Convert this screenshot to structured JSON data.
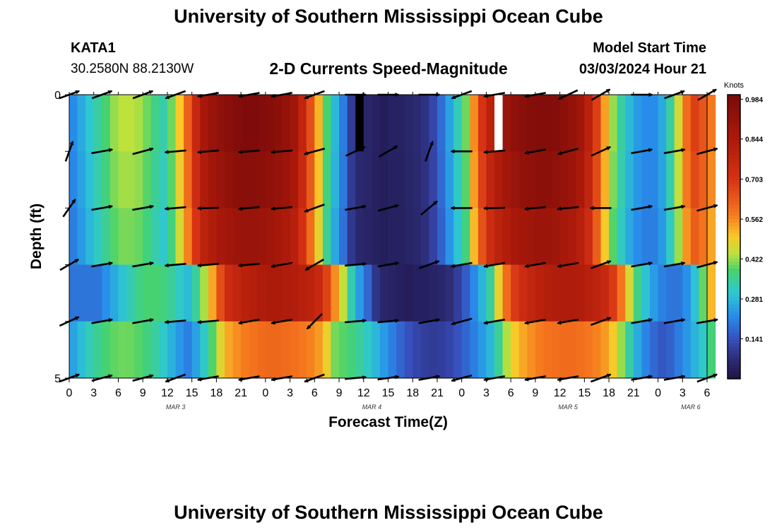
{
  "page": {
    "title": "University of Southern Mississippi Ocean Cube",
    "footer_title": "University of Southern Mississippi Ocean Cube",
    "station_id": "KATA1",
    "station_coords": "30.2580N  88.2130W",
    "chart_title": "2-D Currents Speed-Magnitude",
    "model_start_label": "Model Start Time",
    "model_start_value": "03/03/2024 Hour 21"
  },
  "chart_data": {
    "type": "heatmap",
    "title": "2-D Currents Speed-Magnitude",
    "xlabel": "Forecast Time(Z)",
    "ylabel": "Depth (ft)",
    "x_tick_labels": [
      "0",
      "3",
      "6",
      "9",
      "12",
      "15",
      "18",
      "21",
      "0",
      "3",
      "6",
      "9",
      "12",
      "15",
      "18",
      "21",
      "0",
      "3",
      "6",
      "9",
      "12",
      "15",
      "18",
      "21",
      "0",
      "3",
      "6"
    ],
    "y_tick_labels": [
      "0",
      "5"
    ],
    "ylim": [
      0,
      5
    ],
    "date_labels": [
      {
        "label": "MAR 3",
        "hour_index": 11
      },
      {
        "label": "MAR 4",
        "hour_index": 35
      },
      {
        "label": "MAR 5",
        "hour_index": 59
      },
      {
        "label": "MAR 6",
        "hour_index": 74
      }
    ],
    "colorbar": {
      "unit": "Knots",
      "ticks": [
        "0.984",
        "0.844",
        "0.703",
        "0.562",
        "0.422",
        "0.281",
        "0.141"
      ],
      "tick_values": [
        0.984,
        0.844,
        0.703,
        0.562,
        0.422,
        0.281,
        0.141
      ],
      "range": [
        0.0,
        1.0
      ]
    },
    "hours_per_column": 1,
    "layers": 5,
    "columns": 79,
    "surface_profile": [
      0.22,
      0.26,
      0.3,
      0.34,
      0.38,
      0.42,
      0.44,
      0.44,
      0.43,
      0.4,
      0.36,
      0.33,
      0.4,
      0.5,
      0.62,
      0.76,
      0.86,
      0.9,
      0.93,
      0.95,
      0.97,
      0.98,
      0.98,
      0.97,
      0.96,
      0.94,
      0.92,
      0.88,
      0.78,
      0.65,
      0.52,
      0.38,
      0.28,
      0.2,
      0.1,
      0.06,
      0.05,
      0.04,
      0.03,
      0.04,
      0.04,
      0.05,
      0.06,
      0.08,
      0.12,
      0.18,
      0.25,
      0.32,
      0.4,
      0.56,
      0.7,
      0.8,
      0.86,
      0.9,
      0.93,
      0.95,
      0.96,
      0.97,
      0.97,
      0.96,
      0.94,
      0.92,
      0.88,
      0.8,
      0.68,
      0.54,
      0.42,
      0.34,
      0.28,
      0.24,
      0.22,
      0.22,
      0.26,
      0.34,
      0.46,
      0.6,
      0.68,
      0.64,
      0.58
    ],
    "layer_factors": [
      1.0,
      0.97,
      0.92,
      0.86,
      0.62
    ],
    "deep_layer_shift_columns": 3,
    "missing_columns": [
      {
        "layer": 0,
        "hour_index": 35
      },
      {
        "layer": 0,
        "hour_index": 52
      }
    ],
    "vector_hours": [
      0,
      4,
      9,
      13,
      17,
      22,
      26,
      30,
      35,
      39,
      44,
      48,
      52,
      57,
      61,
      65,
      70,
      74,
      78
    ],
    "vector_layer_depths": [
      0,
      1,
      2,
      3,
      4,
      5
    ],
    "vector_angles_deg": [
      [
        20,
        20,
        20,
        -160,
        -170,
        -170,
        -170,
        -160,
        0,
        0,
        0,
        -160,
        -170,
        -170,
        -155,
        30,
        0,
        20,
        30
      ],
      [
        70,
        10,
        15,
        -175,
        -175,
        -175,
        -175,
        -165,
        25,
        30,
        70,
        180,
        -175,
        -170,
        -165,
        25,
        10,
        10,
        15
      ],
      [
        55,
        10,
        10,
        -175,
        -178,
        -175,
        -175,
        -160,
        10,
        15,
        40,
        180,
        -178,
        -175,
        -175,
        180,
        10,
        10,
        15
      ],
      [
        30,
        10,
        10,
        -175,
        -175,
        -175,
        -170,
        -150,
        5,
        10,
        20,
        -170,
        -170,
        -170,
        -170,
        20,
        10,
        10,
        15
      ],
      [
        25,
        10,
        10,
        -175,
        -175,
        -170,
        -170,
        -135,
        5,
        5,
        10,
        -165,
        -170,
        -170,
        -170,
        20,
        10,
        10,
        10
      ],
      [
        20,
        15,
        15,
        -160,
        -170,
        -170,
        -170,
        -160,
        5,
        8,
        10,
        -165,
        -170,
        -170,
        -170,
        20,
        10,
        10,
        20
      ]
    ]
  }
}
